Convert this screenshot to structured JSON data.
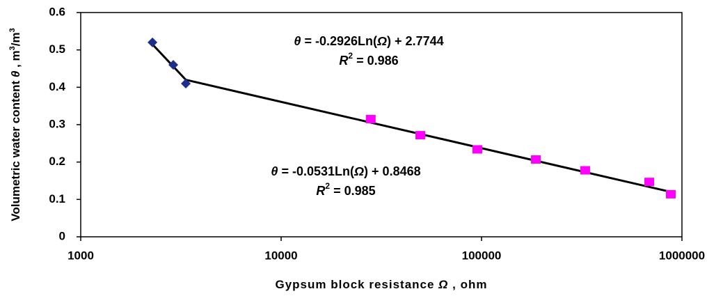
{
  "chart_data": {
    "type": "scatter",
    "xlog": true,
    "xlim": [
      1000,
      1000000
    ],
    "ylim": [
      0,
      0.6
    ],
    "xticks": [
      1000,
      10000,
      100000,
      1000000
    ],
    "yticks": [
      0,
      0.1,
      0.2,
      0.3,
      0.4,
      0.5,
      0.6
    ],
    "x_label": [
      "Gypsum block resistance ",
      "Ω",
      " , ohm"
    ],
    "y_label": [
      "Volumetric water content ",
      "θ",
      " , m",
      "3",
      "/m",
      "3"
    ],
    "series": [
      {
        "color": "#1c2f8a",
        "marker": "diamond",
        "x": [
          2280,
          2897,
          3345
        ],
        "values": [
          0.52,
          0.46,
          0.41
        ]
      },
      {
        "color": "#ff00ff",
        "marker": "square",
        "x": [
          28000,
          49500,
          95300,
          186600,
          329000,
          687000,
          880000
        ],
        "values": [
          0.313,
          0.27,
          0.232,
          0.205,
          0.176,
          0.145,
          0.112
        ]
      }
    ],
    "trendlines": [
      {
        "color": "#000000",
        "x": [
          2280,
          3345
        ],
        "values": [
          0.515,
          0.42
        ]
      },
      {
        "color": "#000000",
        "x": [
          3345,
          880000
        ],
        "values": [
          0.42,
          0.12
        ]
      }
    ],
    "annotations": [
      {
        "equation": [
          "θ",
          " = -0.2926Ln(",
          "Ω",
          ") + 2.7744"
        ],
        "r2": [
          "R",
          "2",
          " = 0.986"
        ]
      },
      {
        "equation": [
          "θ",
          " = -0.0531Ln(",
          "Ω",
          ") + 0.8468"
        ],
        "r2": [
          "R",
          "2",
          " = 0.985"
        ]
      }
    ]
  }
}
